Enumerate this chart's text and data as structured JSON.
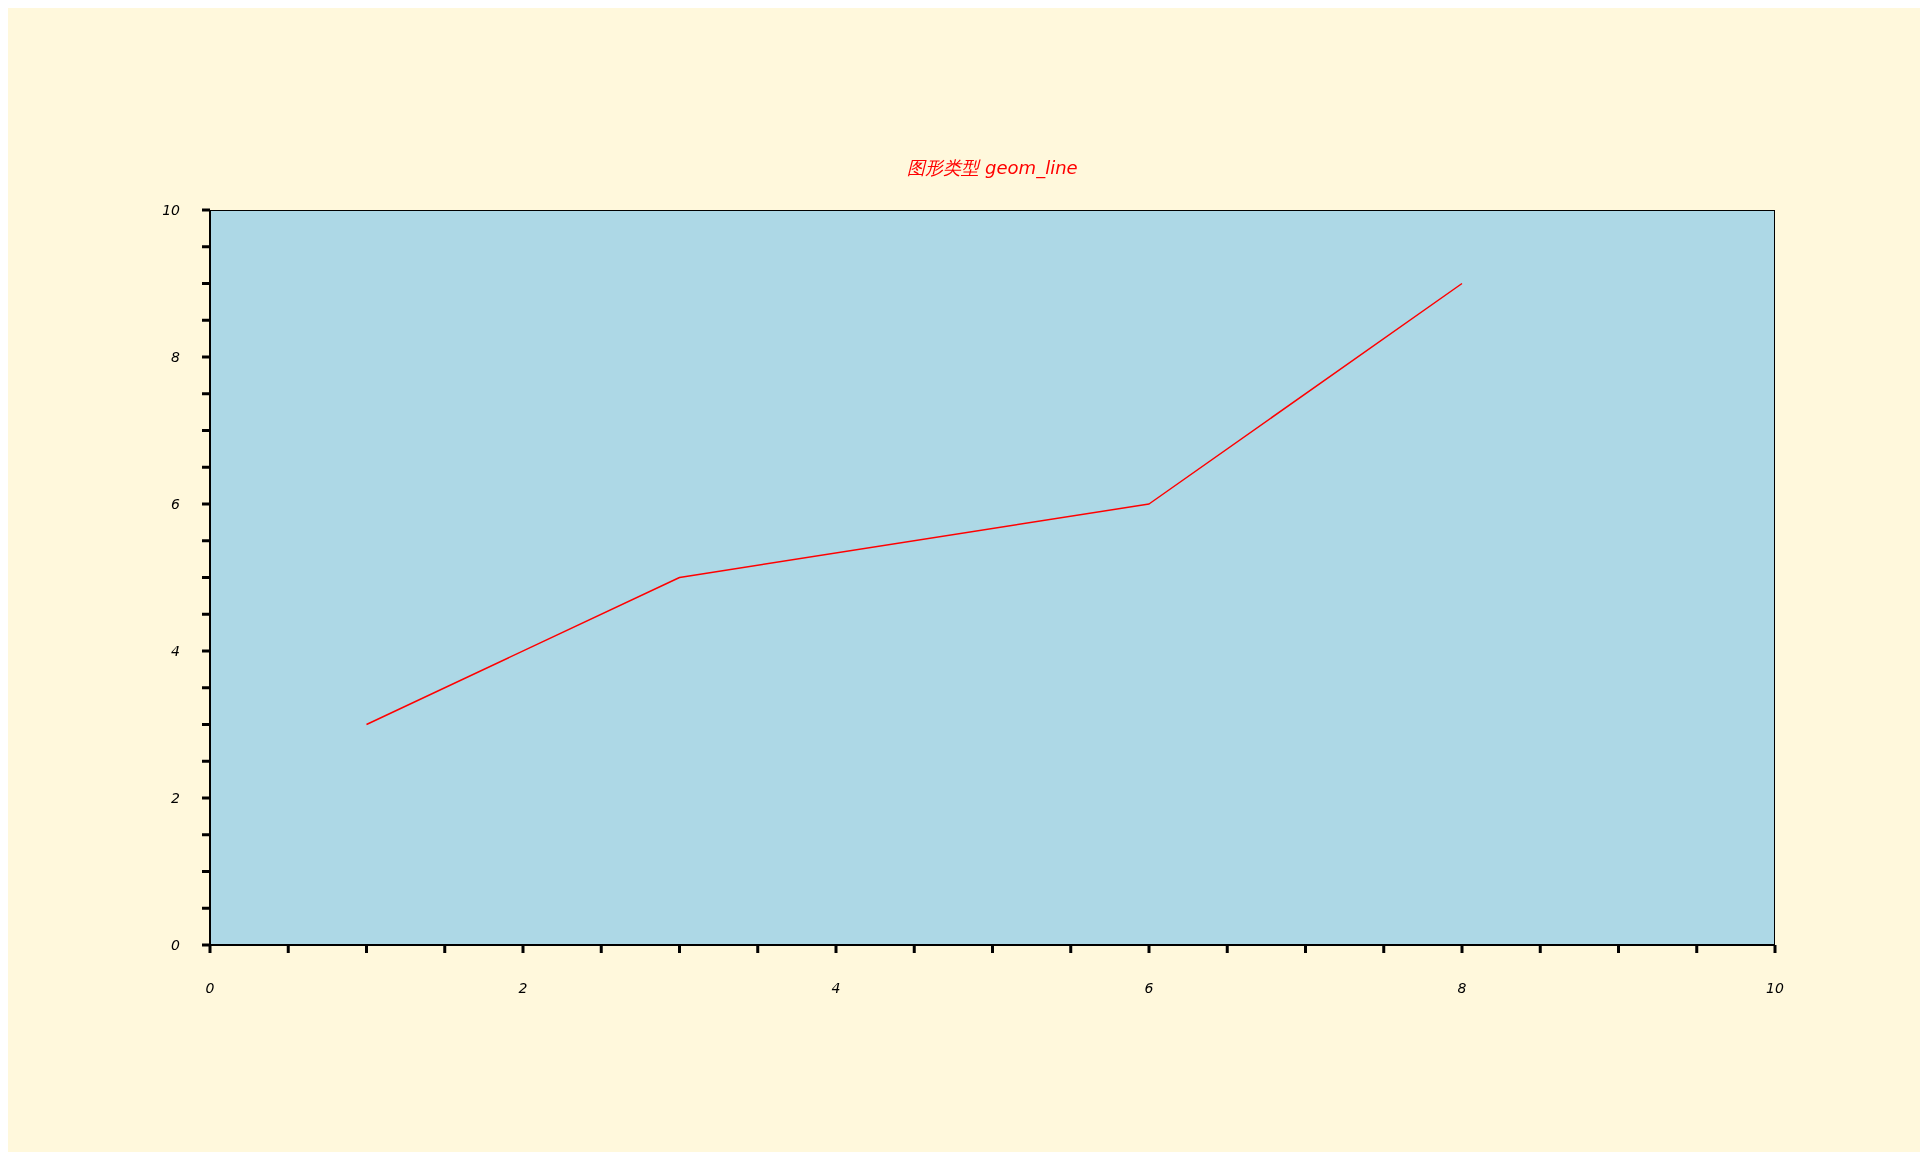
{
  "chart_data": {
    "type": "line",
    "title": "图形类型 geom_line",
    "x": [
      1,
      3,
      6,
      8
    ],
    "series": [
      {
        "color": "#ff0000",
        "values": [
          3,
          5,
          6,
          9
        ]
      }
    ],
    "xlim": [
      0,
      10
    ],
    "ylim": [
      0,
      10
    ],
    "xticks": [
      0,
      {
        "value": 0.5,
        "label": null
      },
      {
        "value": 1,
        "label": null
      },
      {
        "value": 1.5,
        "label": null
      },
      2,
      {
        "value": 2.5,
        "label": null
      },
      {
        "value": 3,
        "label": null
      },
      {
        "value": 3.5,
        "label": null
      },
      4,
      {
        "value": 4.5,
        "label": null
      },
      {
        "value": 5,
        "label": null
      },
      {
        "value": 5.5,
        "label": null
      },
      6,
      {
        "value": 6.5,
        "label": null
      },
      {
        "value": 7,
        "label": null
      },
      {
        "value": 7.5,
        "label": null
      },
      8,
      {
        "value": 8.5,
        "label": null
      },
      {
        "value": 9,
        "label": null
      },
      {
        "value": 9.5,
        "label": null
      },
      10
    ],
    "yticks": [
      0,
      {
        "value": 0.5,
        "label": null
      },
      {
        "value": 1,
        "label": null
      },
      {
        "value": 1.5,
        "label": null
      },
      2,
      {
        "value": 2.5,
        "label": null
      },
      {
        "value": 3,
        "label": null
      },
      {
        "value": 3.5,
        "label": null
      },
      4,
      {
        "value": 4.5,
        "label": null
      },
      {
        "value": 5,
        "label": null
      },
      {
        "value": 5.5,
        "label": null
      },
      6,
      {
        "value": 6.5,
        "label": null
      },
      {
        "value": 7,
        "label": null
      },
      {
        "value": 7.5,
        "label": null
      },
      8,
      {
        "value": 8.5,
        "label": null
      },
      {
        "value": 9,
        "label": null
      },
      {
        "value": 9.5,
        "label": null
      },
      10
    ],
    "marker": "none",
    "line_style": "solid",
    "grid": false
  }
}
